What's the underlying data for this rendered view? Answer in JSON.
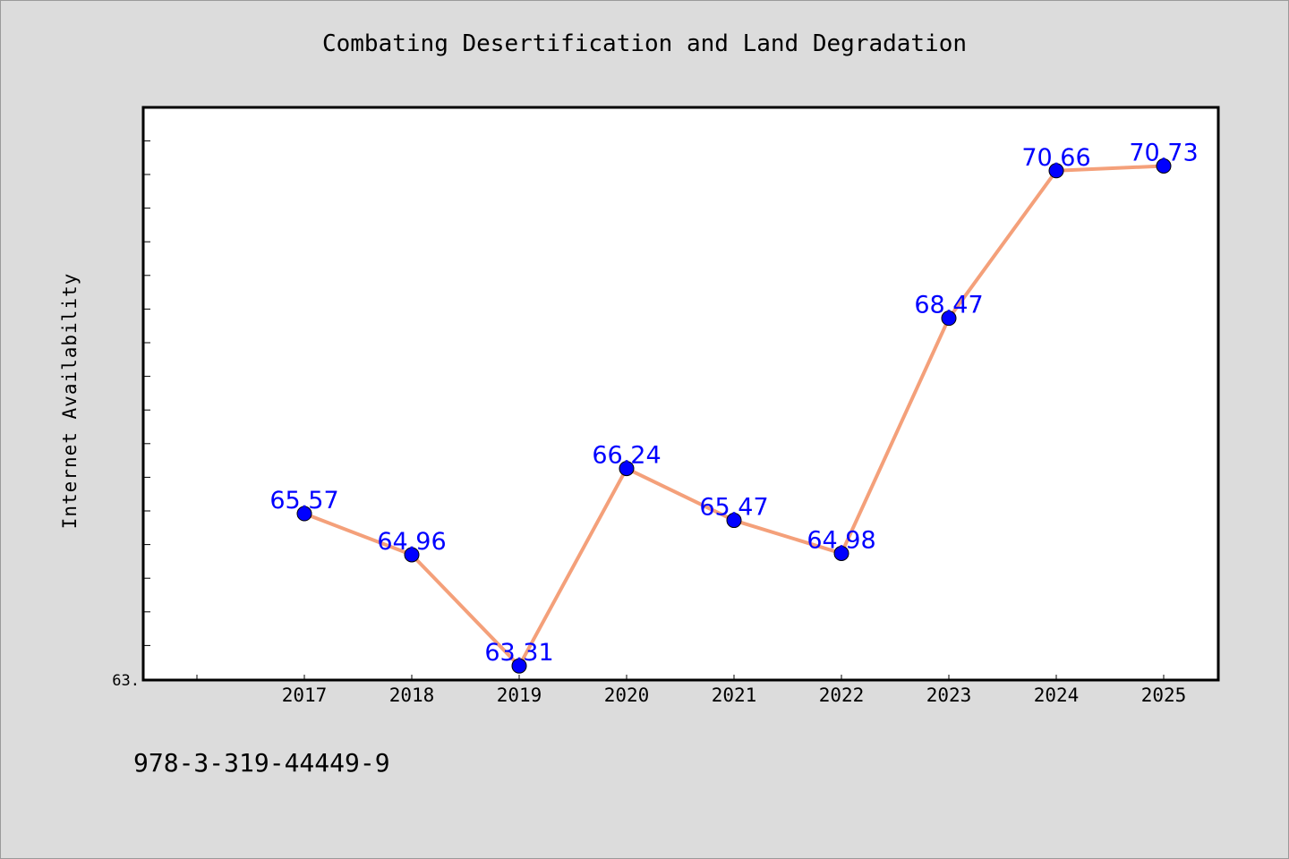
{
  "chart_data": {
    "type": "line",
    "title": "Combating Desertification and Land Degradation",
    "xlabel": "",
    "ylabel": "Internet Availability",
    "categories": [
      "2017",
      "2018",
      "2019",
      "2020",
      "2021",
      "2022",
      "2023",
      "2024",
      "2025"
    ],
    "values": [
      65.57,
      64.96,
      63.31,
      66.24,
      65.47,
      64.98,
      68.47,
      70.66,
      70.73
    ],
    "data_labels": [
      "65.57",
      "64.96",
      "63.31",
      "66.24",
      "65.47",
      "64.98",
      "68.47",
      "70.66",
      "70.73"
    ],
    "y_tick_labels": [
      "63."
    ],
    "ylim": [
      63.1,
      71.6
    ],
    "grid": false,
    "legend": "none",
    "colors": {
      "line": "#f4a07a",
      "marker": "#0000ff",
      "label": "#0000ff",
      "background": "#dcdcdc",
      "plot_background": "#ffffff"
    }
  },
  "footer": {
    "code": "978-3-319-44449-9"
  }
}
